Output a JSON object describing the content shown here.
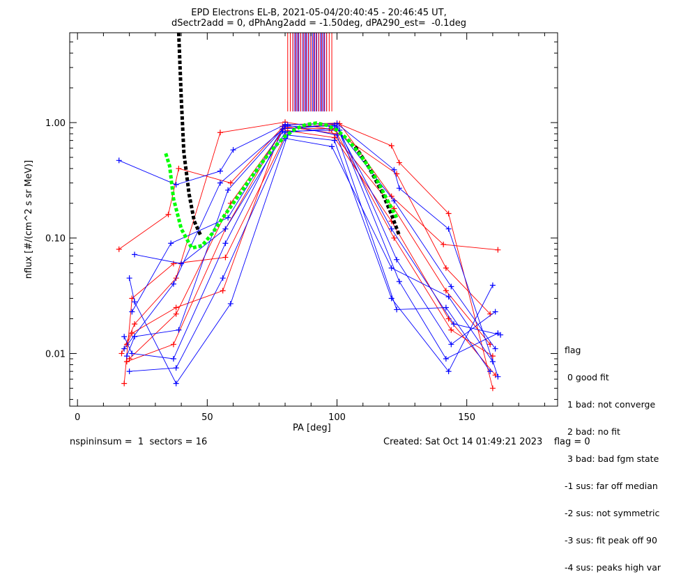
{
  "chart_data": {
    "type": "scatter",
    "title": "EPD Electrons EL-B, 2021-05-04/20:40:45 - 20:46:45 UT,",
    "subtitle": "dSectr2add = 0, dPhAng2add = -1.50deg, dPA290_est=  -0.1deg",
    "xlabel": "PA [deg]",
    "ylabel": "nflux [#/(cm^2 s sr MeV)]",
    "xlim": [
      -3,
      185
    ],
    "ylim": [
      0.0035,
      6.0
    ],
    "yscale": "log",
    "xticks": [
      0,
      50,
      100,
      150
    ],
    "xtick_labels": [
      "0",
      "50",
      "100",
      "150"
    ],
    "yticks": [
      0.01,
      0.1,
      1.0
    ],
    "ytick_labels": [
      "0.01",
      "0.10",
      "1.00"
    ],
    "series": [
      {
        "color": "#ff0000",
        "marker": "+",
        "curves": [
          {
            "x": [
              16,
              35,
              39,
              59,
              80,
              100,
              121,
              124,
              143,
              160
            ],
            "y": [
              0.08,
              0.16,
              0.4,
              0.3,
              0.96,
              0.99,
              0.63,
              0.45,
              0.163,
              0.005
            ]
          },
          {
            "x": [
              19,
              37,
              57,
              79,
              101,
              121,
              141,
              162
            ],
            "y": [
              0.0085,
              0.012,
              0.12,
              0.88,
              0.98,
              0.23,
              0.088,
              0.079
            ]
          },
          {
            "x": [
              17,
              22,
              38,
              55,
              80,
              97,
              122,
              142,
              159
            ],
            "y": [
              0.01,
              0.018,
              0.045,
              0.82,
              1.01,
              0.88,
              0.18,
              0.035,
              0.012
            ]
          },
          {
            "x": [
              18,
              21,
              37,
              57,
              81,
              99,
              121,
              143,
              161
            ],
            "y": [
              0.0055,
              0.03,
              0.06,
              0.068,
              0.85,
              0.74,
              0.14,
              0.02,
              0.0065
            ]
          },
          {
            "x": [
              19,
              21,
              38,
              56,
              79,
              100,
              122,
              144,
              160
            ],
            "y": [
              0.012,
              0.015,
              0.025,
              0.035,
              0.93,
              0.8,
              0.1,
              0.016,
              0.0095
            ]
          },
          {
            "x": [
              20,
              38,
              59,
              80,
              98,
              123,
              142,
              159
            ],
            "y": [
              0.009,
              0.022,
              0.2,
              0.9,
              0.88,
              0.36,
              0.055,
              0.022
            ]
          }
        ]
      },
      {
        "color": "#0000ff",
        "marker": "+",
        "curves": [
          {
            "x": [
              16,
              38,
              55,
              60,
              80,
              100,
              122,
              124,
              143,
              162
            ],
            "y": [
              0.47,
              0.29,
              0.38,
              0.58,
              0.96,
              0.98,
              0.39,
              0.27,
              0.12,
              0.0063
            ]
          },
          {
            "x": [
              20,
              22,
              38,
              59,
              81,
              99,
              121,
              143,
              160
            ],
            "y": [
              0.045,
              0.028,
              0.0055,
              0.027,
              0.78,
              0.7,
              0.03,
              0.007,
              0.039
            ]
          },
          {
            "x": [
              18,
              21,
              37,
              57,
              79,
              101,
              123,
              144,
              161
            ],
            "y": [
              0.014,
              0.01,
              0.009,
              0.09,
              0.84,
              0.86,
              0.065,
              0.012,
              0.023
            ]
          },
          {
            "x": [
              19,
              22,
              39,
              58,
              80,
              100,
              124,
              142,
              162
            ],
            "y": [
              0.0095,
              0.014,
              0.016,
              0.26,
              0.93,
              0.93,
              0.042,
              0.009,
              0.015
            ]
          },
          {
            "x": [
              20,
              38,
              56,
              80,
              98,
              121,
              143,
              160
            ],
            "y": [
              0.007,
              0.0075,
              0.045,
              0.73,
              0.62,
              0.055,
              0.031,
              0.0085
            ]
          },
          {
            "x": [
              21,
              36,
              58,
              79,
              99,
              122,
              144,
              161
            ],
            "y": [
              0.023,
              0.09,
              0.15,
              0.88,
              0.95,
              0.21,
              0.038,
              0.011
            ]
          },
          {
            "x": [
              18,
              37,
              55,
              81,
              100,
              123,
              142,
              159
            ],
            "y": [
              0.011,
              0.04,
              0.3,
              0.95,
              0.78,
              0.024,
              0.025,
              0.007
            ]
          },
          {
            "x": [
              22,
              40,
              57,
              80,
              100,
              121,
              145,
              163
            ],
            "y": [
              0.072,
              0.06,
              0.12,
              0.82,
              0.9,
              0.12,
              0.018,
              0.0145
            ]
          }
        ]
      },
      {
        "color": "#0000ff",
        "marker": "vertical-line",
        "x_range": [
          83,
          96
        ],
        "y_range": [
          1.25,
          6.0
        ]
      },
      {
        "color": "#ff0000",
        "marker": "vertical-line",
        "x_range": [
          81,
          98
        ],
        "y_range": [
          1.25,
          6.0
        ]
      },
      {
        "color": "#000000",
        "style": "dashed-thick",
        "x": [
          39,
          40,
          41,
          43,
          45,
          47.5
        ],
        "y": [
          6.0,
          1.6,
          0.55,
          0.24,
          0.14,
          0.105
        ]
      },
      {
        "color": "#000000",
        "style": "dashed-thick",
        "x": [
          107,
          112,
          117,
          121,
          124
        ],
        "y": [
          0.62,
          0.42,
          0.26,
          0.16,
          0.105
        ]
      },
      {
        "color": "#00ff00",
        "style": "dashed-thick",
        "x": [
          34,
          35.5,
          37,
          40,
          44,
          48,
          52,
          56,
          60,
          64,
          68,
          72,
          76,
          80,
          84,
          88,
          92,
          96,
          100,
          104,
          108,
          112,
          116,
          120,
          123
        ],
        "y": [
          0.54,
          0.42,
          0.22,
          0.12,
          0.082,
          0.086,
          0.11,
          0.15,
          0.2,
          0.27,
          0.36,
          0.48,
          0.62,
          0.76,
          0.88,
          0.96,
          0.99,
          0.95,
          0.86,
          0.72,
          0.56,
          0.42,
          0.3,
          0.2,
          0.15
        ]
      }
    ]
  },
  "legend": {
    "title": "flag",
    "items": [
      " 0 good fit",
      " 1 bad: not converge",
      " 2 bad: no fit",
      " 3 bad: bad fgm state",
      "-1 sus: far off median",
      "-2 sus: not symmetric",
      "-3 sus: fit peak off 90",
      "-4 sus: peaks high var"
    ]
  },
  "footer": {
    "left": "nspininsum =  1  sectors = 16",
    "right": "Created: Sat Oct 14 01:49:21 2023    flag = 0"
  }
}
